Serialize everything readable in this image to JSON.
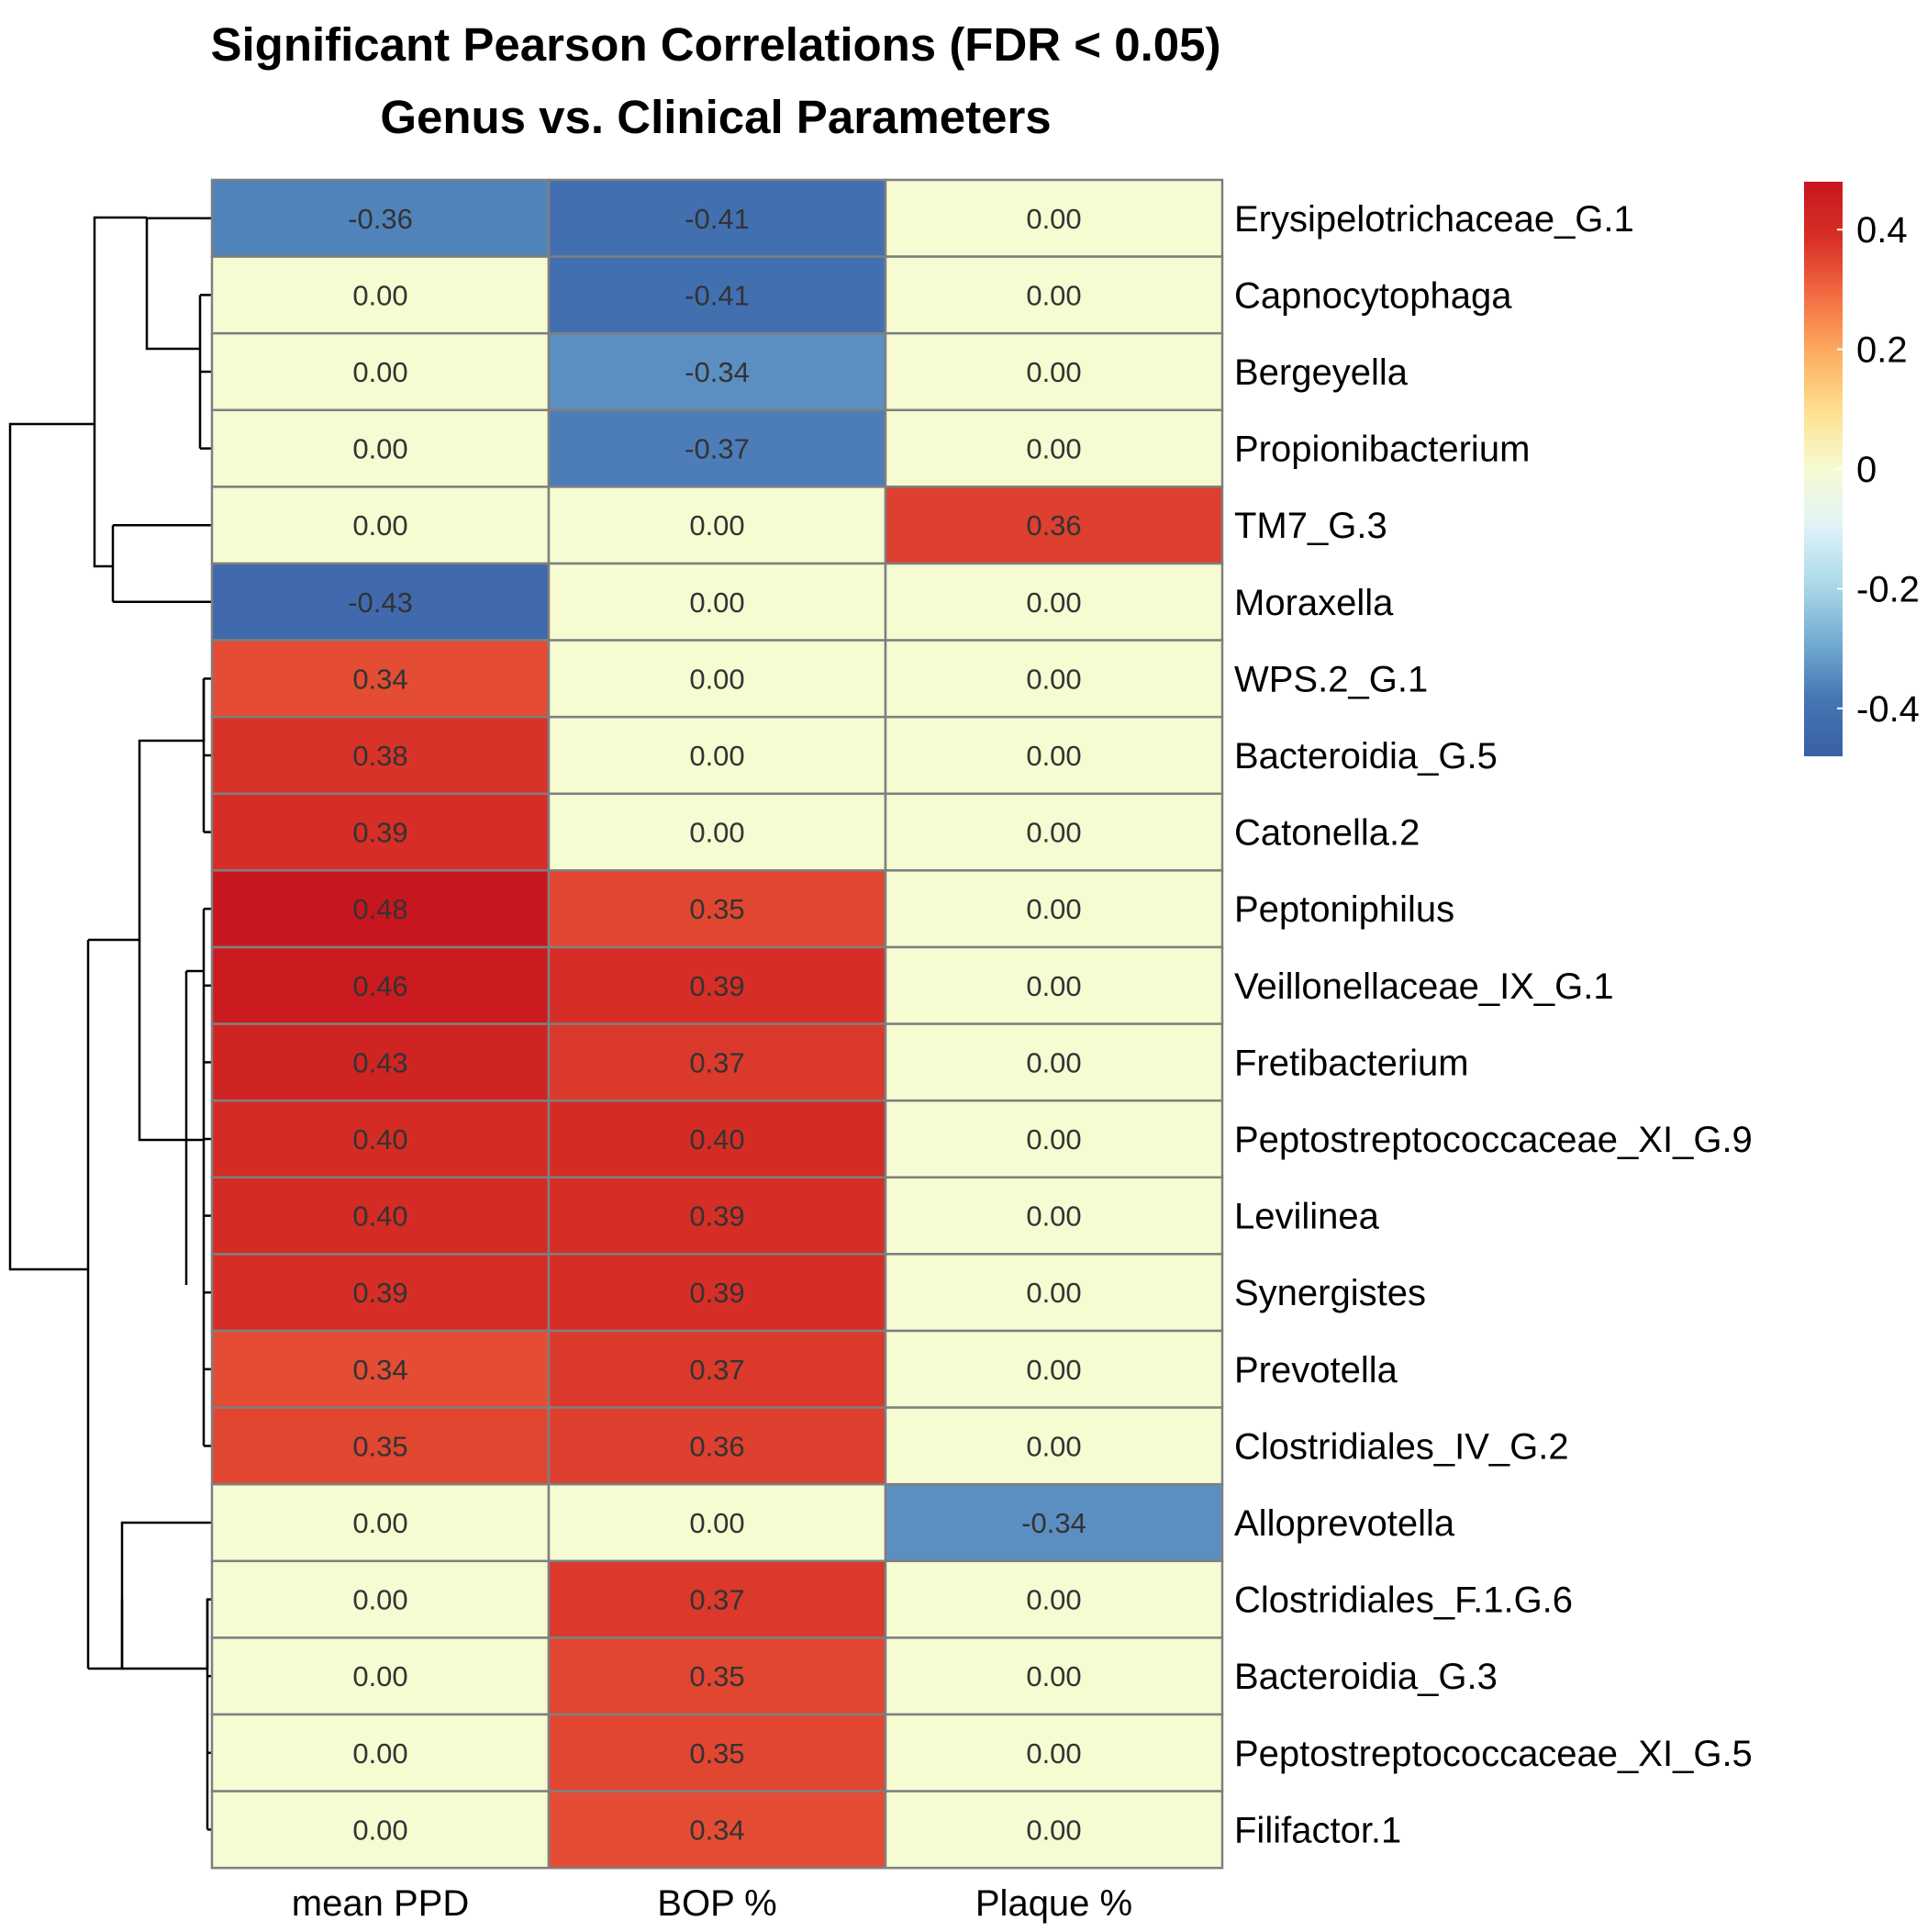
{
  "chart_data": {
    "type": "heatmap",
    "title": "Significant Pearson Correlations (FDR < 0.05)",
    "subtitle": "Genus vs. Clinical Parameters",
    "columns": [
      "mean PPD",
      "BOP %",
      "Plaque %"
    ],
    "rows": [
      "Erysipelotrichaceae_G.1",
      "Capnocytophaga",
      "Bergeyella",
      "Propionibacterium",
      "TM7_G.3",
      "Moraxella",
      "WPS.2_G.1",
      "Bacteroidia_G.5",
      "Catonella.2",
      "Peptoniphilus",
      "Veillonellaceae_IX_G.1",
      "Fretibacterium",
      "Peptostreptococcaceae_XI_G.9",
      "Levilinea",
      "Synergistes",
      "Prevotella",
      "Clostridiales_IV_G.2",
      "Alloprevotella",
      "Clostridiales_F.1.G.6",
      "Bacteroidia_G.3",
      "Peptostreptococcaceae_XI_G.5",
      "Filifactor.1"
    ],
    "values": [
      [
        -0.36,
        -0.41,
        0.0
      ],
      [
        0.0,
        -0.41,
        0.0
      ],
      [
        0.0,
        -0.34,
        0.0
      ],
      [
        0.0,
        -0.37,
        0.0
      ],
      [
        0.0,
        0.0,
        0.36
      ],
      [
        -0.43,
        0.0,
        0.0
      ],
      [
        0.34,
        0.0,
        0.0
      ],
      [
        0.38,
        0.0,
        0.0
      ],
      [
        0.39,
        0.0,
        0.0
      ],
      [
        0.48,
        0.35,
        0.0
      ],
      [
        0.46,
        0.39,
        0.0
      ],
      [
        0.43,
        0.37,
        0.0
      ],
      [
        0.4,
        0.4,
        0.0
      ],
      [
        0.4,
        0.39,
        0.0
      ],
      [
        0.39,
        0.39,
        0.0
      ],
      [
        0.34,
        0.37,
        0.0
      ],
      [
        0.35,
        0.36,
        0.0
      ],
      [
        0.0,
        0.0,
        -0.34
      ],
      [
        0.0,
        0.37,
        0.0
      ],
      [
        0.0,
        0.35,
        0.0
      ],
      [
        0.0,
        0.35,
        0.0
      ],
      [
        0.0,
        0.34,
        0.0
      ]
    ],
    "color_scale": {
      "min": -0.48,
      "max": 0.48,
      "colors": [
        "#3A5FA6",
        "#4575B4",
        "#74ADD1",
        "#ABD9E9",
        "#E0F3F8",
        "#F6FBD2",
        "#FEE090",
        "#FDAE61",
        "#F46D43",
        "#D73027",
        "#C8161E"
      ]
    },
    "legend": {
      "ticks": [
        0.4,
        0.2,
        0,
        -0.2,
        -0.4
      ],
      "tick_labels": [
        "0.4",
        "0.2",
        "0",
        "-0.2",
        "-0.4"
      ],
      "position": "right"
    },
    "dendrogram": "rows",
    "grid": false
  }
}
